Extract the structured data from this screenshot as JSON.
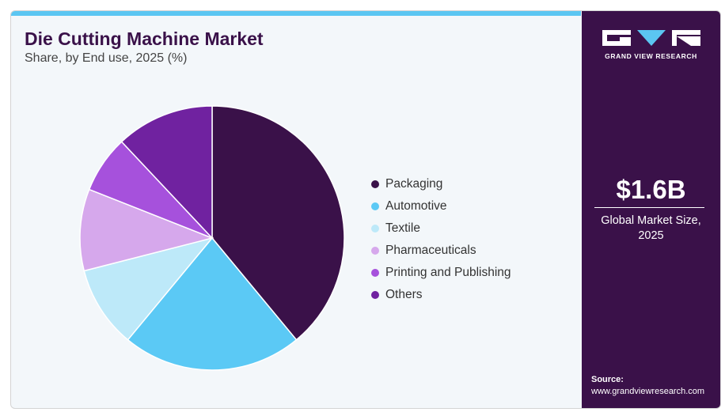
{
  "header": {
    "title": "Die Cutting Machine Market",
    "subtitle": "Share, by End use, 2025 (%)"
  },
  "chart_data": {
    "type": "pie",
    "title": "Die Cutting Machine Market",
    "subtitle": "Share, by End use, 2025 (%)",
    "categories": [
      "Packaging",
      "Automotive",
      "Textile",
      "Pharmaceuticals",
      "Printing and Publishing",
      "Others"
    ],
    "values": [
      39,
      22,
      10,
      10,
      7,
      12
    ],
    "colors": [
      "#3a1149",
      "#5bc9f5",
      "#bde9f9",
      "#d6a8ec",
      "#a651dc",
      "#7022a0"
    ],
    "legend_position": "right"
  },
  "sidebar": {
    "brand": "GRAND VIEW RESEARCH",
    "metric_value": "$1.6B",
    "metric_label": "Global Market Size, 2025",
    "source_label": "Source:",
    "source_url": "www.grandviewresearch.com"
  }
}
